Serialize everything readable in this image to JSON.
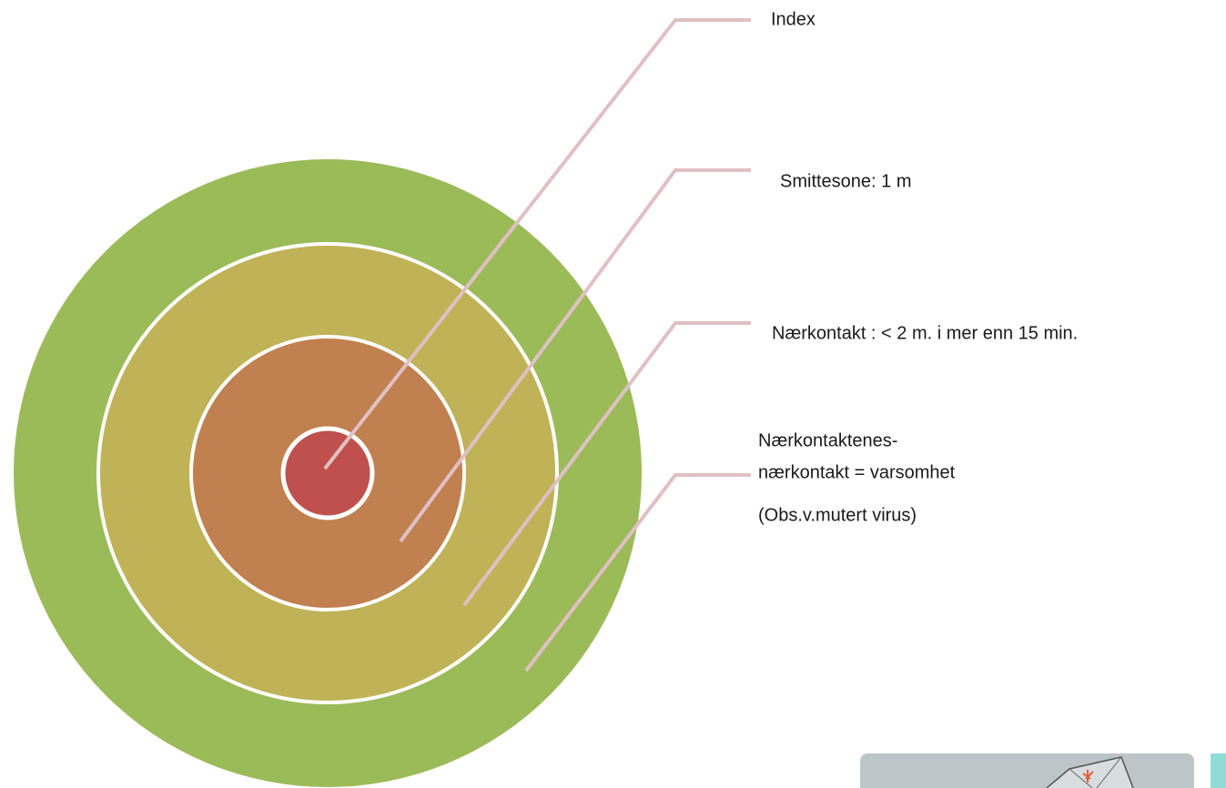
{
  "labels": [
    "Index",
    "Smittesone: 1 m",
    "Nærkontakt : < 2 m. i mer enn 15 min."
  ],
  "outer_label": [
    "Nærkontaktenes-",
    "nærkontakt = varsomhet"
  ],
  "note": "(Obs.v.mutert virus)"
}
